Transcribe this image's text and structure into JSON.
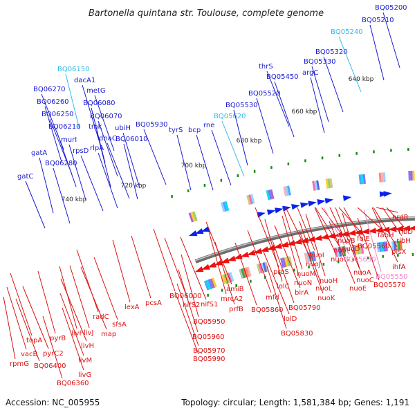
{
  "title": "Bartonella quintana str. Toulouse, complete genome",
  "footer": {
    "accession": "Accession: NC_005955",
    "topology": "Topology: circular; Length: 1,581,384 bp; Genes: 1,191"
  },
  "colors": {
    "backbone": "#8a8a8a",
    "label_blue": "#1a1ad4",
    "label_cyan": "#33bbee",
    "label_red": "#dd1111",
    "label_pink": "#ee88cc",
    "feature_red": "#ee1111",
    "feature_blue": "#0a22ee",
    "marker_green": "#1a8a1a"
  },
  "kbp_ticks": [
    "640 kbp",
    "660 kbp",
    "680 kbp",
    "700 kbp",
    "720 kbp",
    "740 kbp"
  ],
  "upper_labels": [
    "BQ06150",
    "dacA1",
    "metG",
    "BQ06270",
    "BQ06080",
    "BQ06260",
    "BQ06070",
    "BQ06250",
    "tmk",
    "ubiH",
    "BQ06210",
    "dnaC",
    "BQ06010",
    "murI",
    "rlpA",
    "rpsD",
    "gatA",
    "BQ06280",
    "gatC",
    "BQ05930",
    "tyrS",
    "bcp",
    "rne",
    "BQ05620",
    "BQ05530",
    "BQ05520",
    "BQ05450",
    "thrS",
    "argC",
    "BQ05330",
    "BQ05320",
    "BQ05240",
    "BQ05210",
    "BQ05200"
  ],
  "lower_labels": [
    "rpmG",
    "vacB",
    "topA",
    "BQ06400",
    "pyrC2",
    "pyrB",
    "BQ06360",
    "livG",
    "livM",
    "livH",
    "livF",
    "livJ",
    "radC",
    "sfsA",
    "map",
    "lexA",
    "pcsA",
    "BQ06000",
    "nifS2",
    "nifS1",
    "BQ05950",
    "BQ05960",
    "BQ05970",
    "BQ05990",
    "amiB",
    "mrcA2",
    "prfB",
    "BQ05860",
    "mfd",
    "lolD",
    "lolC",
    "BQ05830",
    "BQ05790",
    "proS",
    "birA",
    "nuoN",
    "nuoM",
    "nuoL",
    "nuoK",
    "nuoJ",
    "nuoI",
    "nuoH",
    "nuoG",
    "nuoF",
    "nuoE",
    "nuoD",
    "nuoC",
    "nuoB",
    "nuoA",
    "BQ05630",
    "BQ05550",
    "BQ05560",
    "BQ05570",
    "folE",
    "fabH",
    "ribD",
    "ribH",
    "nrdR",
    "plsX",
    "ihfA"
  ]
}
